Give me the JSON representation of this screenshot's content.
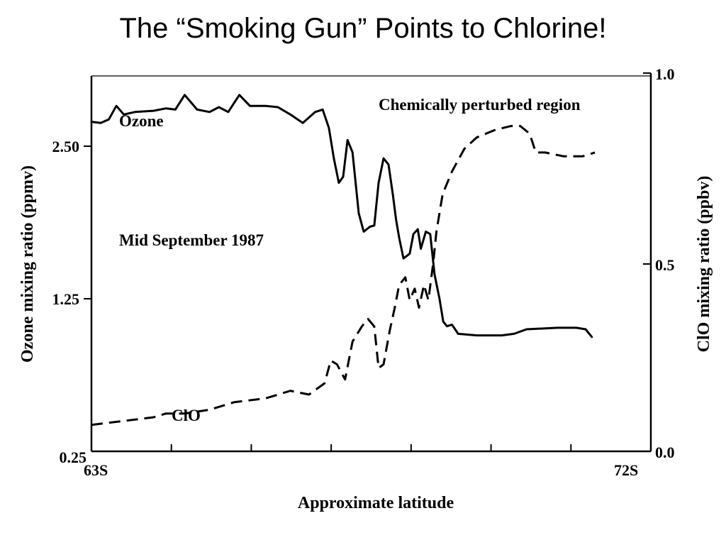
{
  "title": "The “Smoking Gun” Points to Chlorine!",
  "chart_data": {
    "type": "line",
    "xlabel": "Approximate latitude",
    "ylabel_left": "Ozone mixing ratio (ppmv)",
    "ylabel_right": "ClO mixing ratio (ppbv)",
    "x_tick_labels": [
      "63S",
      "72S"
    ],
    "xlim": [
      63,
      72
    ],
    "y_left_ticks": [
      "0.25",
      "1.25",
      "2.50"
    ],
    "y_right_ticks": [
      "0.0",
      "0.5",
      "1.0"
    ],
    "ylim_left": [
      0.25,
      3.0
    ],
    "ylim_right": [
      0.0,
      1.0
    ],
    "annotations": {
      "region": "Chemically perturbed region",
      "date": "Mid September 1987"
    },
    "series": [
      {
        "name": "Ozone",
        "axis": "left",
        "line_style": "solid",
        "points": [
          [
            63.0,
            2.7
          ],
          [
            63.15,
            2.69
          ],
          [
            63.28,
            2.72
          ],
          [
            63.4,
            2.83
          ],
          [
            63.52,
            2.76
          ],
          [
            63.7,
            2.78
          ],
          [
            64.0,
            2.79
          ],
          [
            64.2,
            2.81
          ],
          [
            64.35,
            2.8
          ],
          [
            64.5,
            2.92
          ],
          [
            64.7,
            2.8
          ],
          [
            64.9,
            2.78
          ],
          [
            65.05,
            2.82
          ],
          [
            65.2,
            2.78
          ],
          [
            65.38,
            2.92
          ],
          [
            65.55,
            2.83
          ],
          [
            65.8,
            2.83
          ],
          [
            66.0,
            2.82
          ],
          [
            66.2,
            2.76
          ],
          [
            66.4,
            2.69
          ],
          [
            66.6,
            2.78
          ],
          [
            66.72,
            2.8
          ],
          [
            66.82,
            2.65
          ],
          [
            66.9,
            2.4
          ],
          [
            66.98,
            2.2
          ],
          [
            67.05,
            2.25
          ],
          [
            67.12,
            2.55
          ],
          [
            67.2,
            2.45
          ],
          [
            67.3,
            1.95
          ],
          [
            67.38,
            1.8
          ],
          [
            67.48,
            1.84
          ],
          [
            67.55,
            1.85
          ],
          [
            67.62,
            2.2
          ],
          [
            67.7,
            2.4
          ],
          [
            67.78,
            2.35
          ],
          [
            67.85,
            2.1
          ],
          [
            67.9,
            1.9
          ],
          [
            67.95,
            1.75
          ],
          [
            68.02,
            1.58
          ],
          [
            68.12,
            1.62
          ],
          [
            68.18,
            1.78
          ],
          [
            68.25,
            1.82
          ],
          [
            68.3,
            1.66
          ],
          [
            68.38,
            1.8
          ],
          [
            68.45,
            1.78
          ],
          [
            68.52,
            1.45
          ],
          [
            68.6,
            1.25
          ],
          [
            68.66,
            1.1
          ],
          [
            68.72,
            1.07
          ],
          [
            68.8,
            1.08
          ],
          [
            68.9,
            1.02
          ],
          [
            69.2,
            1.01
          ],
          [
            69.6,
            1.01
          ],
          [
            69.8,
            1.02
          ],
          [
            70.0,
            1.05
          ],
          [
            70.5,
            1.06
          ],
          [
            70.8,
            1.06
          ],
          [
            70.95,
            1.05
          ],
          [
            71.05,
            1.0
          ]
        ]
      },
      {
        "name": "ClO",
        "axis": "right",
        "line_style": "dashed",
        "points": [
          [
            63.0,
            0.07
          ],
          [
            63.5,
            0.08
          ],
          [
            64.0,
            0.09
          ],
          [
            64.2,
            0.1
          ],
          [
            64.5,
            0.1
          ],
          [
            64.9,
            0.11
          ],
          [
            65.3,
            0.13
          ],
          [
            65.8,
            0.14
          ],
          [
            66.2,
            0.16
          ],
          [
            66.5,
            0.15
          ],
          [
            66.75,
            0.18
          ],
          [
            66.85,
            0.24
          ],
          [
            66.95,
            0.23
          ],
          [
            67.08,
            0.19
          ],
          [
            67.2,
            0.29
          ],
          [
            67.35,
            0.33
          ],
          [
            67.45,
            0.35
          ],
          [
            67.55,
            0.33
          ],
          [
            67.62,
            0.22
          ],
          [
            67.7,
            0.23
          ],
          [
            67.8,
            0.32
          ],
          [
            67.88,
            0.38
          ],
          [
            67.95,
            0.44
          ],
          [
            68.05,
            0.46
          ],
          [
            68.12,
            0.4
          ],
          [
            68.2,
            0.43
          ],
          [
            68.27,
            0.38
          ],
          [
            68.35,
            0.44
          ],
          [
            68.42,
            0.4
          ],
          [
            68.5,
            0.5
          ],
          [
            68.55,
            0.58
          ],
          [
            68.65,
            0.68
          ],
          [
            68.8,
            0.74
          ],
          [
            69.0,
            0.8
          ],
          [
            69.2,
            0.83
          ],
          [
            69.5,
            0.85
          ],
          [
            69.75,
            0.86
          ],
          [
            69.9,
            0.86
          ],
          [
            70.05,
            0.84
          ],
          [
            70.15,
            0.79
          ],
          [
            70.3,
            0.79
          ],
          [
            70.6,
            0.78
          ],
          [
            70.9,
            0.78
          ],
          [
            71.1,
            0.79
          ]
        ]
      }
    ]
  }
}
